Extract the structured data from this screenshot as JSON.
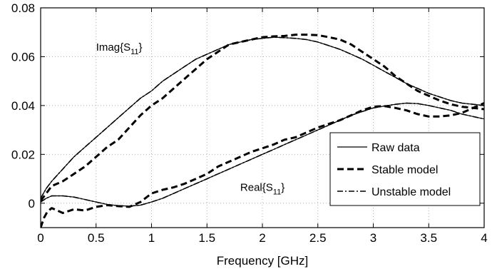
{
  "chart_data": {
    "type": "line",
    "title": "",
    "xlabel": "Frequency [GHz]",
    "ylabel": "",
    "xlim": [
      0,
      4
    ],
    "ylim": [
      -0.01,
      0.08
    ],
    "xticks": [
      0,
      0.5,
      1,
      1.5,
      2,
      2.5,
      3,
      3.5,
      4
    ],
    "xtick_labels": [
      "0",
      "0.5",
      "1",
      "1.5",
      "2",
      "2.5",
      "3",
      "3.5",
      "4"
    ],
    "yticks": [
      0,
      0.02,
      0.04,
      0.06,
      0.08
    ],
    "ytick_labels": [
      "0",
      "0.02",
      "0.04",
      "0.06",
      "0.08"
    ],
    "grid": true,
    "legend_position": "bottom-right",
    "annotations": [
      {
        "base": "Imag{S",
        "sub": "11",
        "close": "}",
        "x": 0.5,
        "y": 0.0625
      },
      {
        "base": "Real{S",
        "sub": "11",
        "close": "}",
        "x": 1.8,
        "y": 0.005
      }
    ],
    "series": [
      {
        "name": "Raw data",
        "style": "solid",
        "group": "imag",
        "x": [
          0,
          0.05,
          0.1,
          0.2,
          0.3,
          0.4,
          0.5,
          0.6,
          0.7,
          0.8,
          0.9,
          1.0,
          1.1,
          1.2,
          1.3,
          1.4,
          1.5,
          1.6,
          1.7,
          1.8,
          1.9,
          2.0,
          2.1,
          2.2,
          2.3,
          2.4,
          2.5,
          2.6,
          2.7,
          2.8,
          2.9,
          3.0,
          3.1,
          3.2,
          3.3,
          3.4,
          3.5,
          3.6,
          3.7,
          3.8,
          3.9,
          4.0
        ],
        "y": [
          0.002,
          0.006,
          0.009,
          0.014,
          0.019,
          0.023,
          0.027,
          0.031,
          0.035,
          0.039,
          0.043,
          0.046,
          0.05,
          0.053,
          0.056,
          0.059,
          0.061,
          0.063,
          0.065,
          0.066,
          0.067,
          0.0675,
          0.068,
          0.0678,
          0.0675,
          0.067,
          0.066,
          0.0645,
          0.063,
          0.061,
          0.059,
          0.0565,
          0.054,
          0.0515,
          0.049,
          0.047,
          0.045,
          0.0435,
          0.042,
          0.041,
          0.0405,
          0.04
        ]
      },
      {
        "name": "Raw data",
        "style": "solid",
        "group": "real",
        "x": [
          0,
          0.05,
          0.1,
          0.2,
          0.3,
          0.4,
          0.5,
          0.6,
          0.7,
          0.8,
          0.9,
          1.0,
          1.1,
          1.2,
          1.3,
          1.4,
          1.5,
          1.6,
          1.7,
          1.8,
          1.9,
          2.0,
          2.1,
          2.2,
          2.3,
          2.4,
          2.5,
          2.6,
          2.7,
          2.8,
          2.9,
          3.0,
          3.1,
          3.2,
          3.3,
          3.4,
          3.5,
          3.6,
          3.7,
          3.8,
          3.9,
          4.0
        ],
        "y": [
          0.0005,
          0.002,
          0.003,
          0.003,
          0.0025,
          0.0015,
          0.0005,
          -0.0005,
          -0.001,
          -0.0012,
          -0.0008,
          0.0005,
          0.002,
          0.004,
          0.006,
          0.008,
          0.01,
          0.012,
          0.014,
          0.016,
          0.018,
          0.02,
          0.022,
          0.024,
          0.026,
          0.028,
          0.03,
          0.032,
          0.034,
          0.036,
          0.0375,
          0.039,
          0.0398,
          0.0405,
          0.041,
          0.0408,
          0.04,
          0.039,
          0.038,
          0.0365,
          0.0355,
          0.0345
        ]
      },
      {
        "name": "Stable model",
        "style": "dashed",
        "group": "imag",
        "x": [
          0,
          0.05,
          0.1,
          0.15,
          0.2,
          0.3,
          0.4,
          0.5,
          0.6,
          0.7,
          0.8,
          0.9,
          1.0,
          1.1,
          1.2,
          1.3,
          1.4,
          1.5,
          1.6,
          1.7,
          1.8,
          1.9,
          2.0,
          2.1,
          2.2,
          2.3,
          2.4,
          2.5,
          2.6,
          2.7,
          2.8,
          2.9,
          3.0,
          3.1,
          3.2,
          3.3,
          3.4,
          3.5,
          3.6,
          3.7,
          3.8,
          3.9,
          4.0
        ],
        "y": [
          0.001,
          0.004,
          0.007,
          0.008,
          0.009,
          0.012,
          0.015,
          0.019,
          0.023,
          0.026,
          0.031,
          0.036,
          0.04,
          0.043,
          0.047,
          0.051,
          0.055,
          0.059,
          0.062,
          0.065,
          0.066,
          0.067,
          0.068,
          0.0683,
          0.0685,
          0.069,
          0.069,
          0.0688,
          0.068,
          0.067,
          0.065,
          0.062,
          0.059,
          0.056,
          0.052,
          0.049,
          0.046,
          0.044,
          0.042,
          0.0405,
          0.0395,
          0.039,
          0.0385
        ]
      },
      {
        "name": "Stable model",
        "style": "dashed",
        "group": "real",
        "x": [
          0,
          0.03,
          0.06,
          0.1,
          0.15,
          0.2,
          0.3,
          0.4,
          0.5,
          0.6,
          0.7,
          0.8,
          0.9,
          1.0,
          1.1,
          1.2,
          1.3,
          1.4,
          1.5,
          1.6,
          1.7,
          1.8,
          1.9,
          2.0,
          2.1,
          2.2,
          2.3,
          2.4,
          2.5,
          2.6,
          2.7,
          2.8,
          2.9,
          3.0,
          3.1,
          3.2,
          3.3,
          3.4,
          3.5,
          3.6,
          3.7,
          3.8,
          3.9,
          4.0
        ],
        "y": [
          -0.01,
          -0.006,
          -0.0035,
          -0.002,
          -0.003,
          -0.004,
          -0.0025,
          -0.003,
          -0.0015,
          -0.0008,
          -0.0012,
          -0.0015,
          0.0005,
          0.004,
          0.0055,
          0.0065,
          0.008,
          0.01,
          0.012,
          0.015,
          0.017,
          0.019,
          0.021,
          0.0225,
          0.024,
          0.026,
          0.027,
          0.029,
          0.031,
          0.0325,
          0.034,
          0.036,
          0.038,
          0.0395,
          0.0398,
          0.039,
          0.038,
          0.0365,
          0.0355,
          0.0355,
          0.036,
          0.037,
          0.039,
          0.041
        ]
      },
      {
        "name": "Unstable model",
        "style": "dashdot",
        "group": "imag",
        "x": [
          0,
          0.05,
          0.1,
          0.2,
          0.3,
          0.4,
          0.5,
          0.6,
          0.7,
          0.8,
          0.9,
          1.0,
          1.1,
          1.2,
          1.3,
          1.4,
          1.5,
          1.6,
          1.7,
          1.8,
          1.9,
          2.0,
          2.1,
          2.2,
          2.3,
          2.4,
          2.5,
          2.6,
          2.7,
          2.8,
          2.9,
          3.0,
          3.1,
          3.2,
          3.3,
          3.4,
          3.5,
          3.6,
          3.7,
          3.8,
          3.9,
          4.0
        ],
        "y": [
          0.002,
          0.006,
          0.009,
          0.014,
          0.019,
          0.023,
          0.027,
          0.031,
          0.035,
          0.039,
          0.043,
          0.046,
          0.05,
          0.053,
          0.056,
          0.059,
          0.061,
          0.063,
          0.065,
          0.066,
          0.067,
          0.0675,
          0.068,
          0.0678,
          0.0675,
          0.067,
          0.066,
          0.0645,
          0.063,
          0.061,
          0.059,
          0.0565,
          0.054,
          0.0515,
          0.049,
          0.047,
          0.045,
          0.0435,
          0.042,
          0.041,
          0.0405,
          0.04
        ]
      },
      {
        "name": "Unstable model",
        "style": "dashdot",
        "group": "real",
        "x": [
          0,
          0.05,
          0.1,
          0.2,
          0.3,
          0.4,
          0.5,
          0.6,
          0.7,
          0.8,
          0.9,
          1.0,
          1.1,
          1.2,
          1.3,
          1.4,
          1.5,
          1.6,
          1.7,
          1.8,
          1.9,
          2.0,
          2.1,
          2.2,
          2.3,
          2.4,
          2.5,
          2.6,
          2.7,
          2.8,
          2.9,
          3.0,
          3.1,
          3.2,
          3.3,
          3.4,
          3.5,
          3.6,
          3.7,
          3.8,
          3.9,
          4.0
        ],
        "y": [
          0.0005,
          0.002,
          0.003,
          0.003,
          0.0025,
          0.0015,
          0.0005,
          -0.0005,
          -0.001,
          -0.0012,
          -0.0008,
          0.0005,
          0.002,
          0.004,
          0.006,
          0.008,
          0.01,
          0.012,
          0.014,
          0.016,
          0.018,
          0.02,
          0.022,
          0.024,
          0.026,
          0.028,
          0.03,
          0.032,
          0.034,
          0.036,
          0.0375,
          0.039,
          0.0398,
          0.0405,
          0.041,
          0.0408,
          0.04,
          0.039,
          0.038,
          0.0365,
          0.0355,
          0.0345
        ]
      }
    ],
    "legend": [
      {
        "label": "Raw data",
        "style": "solid"
      },
      {
        "label": "Stable model",
        "style": "dashed"
      },
      {
        "label": "Unstable model",
        "style": "dashdot"
      }
    ]
  }
}
